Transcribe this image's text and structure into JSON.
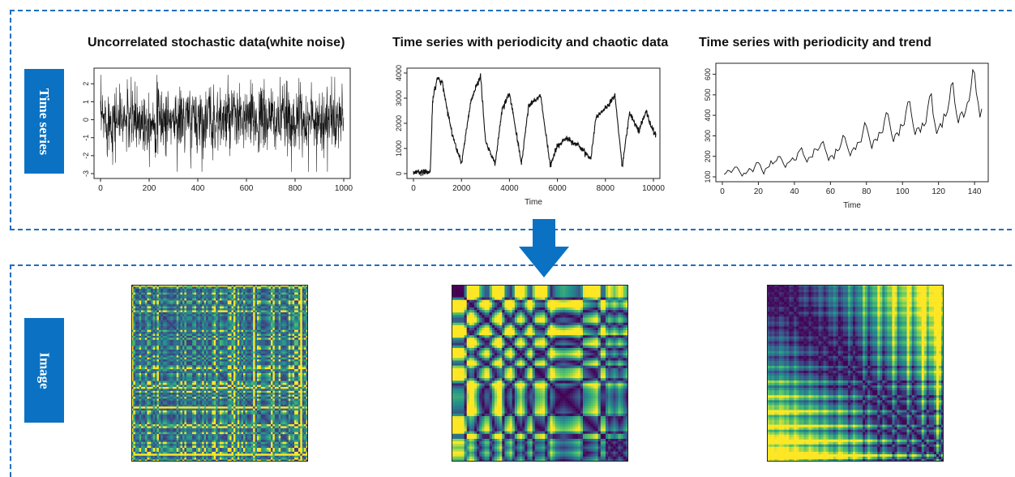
{
  "labels": {
    "time_series": "Time series",
    "image": "Image"
  },
  "colors": {
    "accent": "#0b72c3",
    "dashed_border": "#1f6fbf",
    "viridis_low": "#440154",
    "viridis_mid": "#21918c",
    "viridis_high": "#fde725"
  },
  "chart_data": [
    {
      "type": "line",
      "title": "Uncorrelated stochastic data(white noise)",
      "xlabel": "",
      "ylabel": "",
      "xlim": [
        0,
        1000
      ],
      "ylim": [
        -3,
        2.6
      ],
      "x_ticks": [
        "0",
        "200",
        "400",
        "600",
        "800",
        "1000"
      ],
      "y_ticks": [
        "-3",
        "-2",
        "-1",
        "0",
        "1",
        "2"
      ],
      "series": [
        {
          "description_values": "random normal noise, mean 0, sd ~1, 1000 points"
        }
      ]
    },
    {
      "type": "line",
      "title": "Time series with periodicity and chaotic data",
      "xlabel": "Time",
      "ylabel": "",
      "xlim": [
        0,
        10000
      ],
      "ylim": [
        0,
        4000
      ],
      "x_ticks": [
        "0",
        "2000",
        "4000",
        "6000",
        "8000",
        "10000"
      ],
      "y_ticks": [
        "0",
        "1000",
        "2000",
        "3000",
        "4000"
      ],
      "key_points": {
        "x": [
          0,
          700,
          800,
          1000,
          1200,
          1600,
          2000,
          2400,
          2800,
          3000,
          3400,
          3700,
          4000,
          4500,
          4800,
          5300,
          5700,
          6000,
          6400,
          6900,
          7400,
          7600,
          8000,
          8400,
          8700,
          9000,
          9400,
          9700,
          9900,
          10100
        ],
        "y": [
          50,
          80,
          2900,
          3800,
          3600,
          1600,
          400,
          2900,
          3900,
          1300,
          350,
          2600,
          3200,
          400,
          2700,
          3100,
          300,
          1100,
          1400,
          1100,
          600,
          2200,
          2600,
          3100,
          300,
          2400,
          1700,
          2500,
          1900,
          1500
        ]
      }
    },
    {
      "type": "line",
      "title": "Time series with periodicity and trend",
      "xlabel": "Time",
      "ylabel": "",
      "xlim": [
        0,
        144
      ],
      "ylim": [
        100,
        630
      ],
      "x_ticks": [
        "0",
        "20",
        "40",
        "60",
        "80",
        "100",
        "120",
        "140"
      ],
      "y_ticks": [
        "100",
        "200",
        "300",
        "400",
        "500",
        "600"
      ],
      "values": [
        112,
        118,
        132,
        129,
        121,
        135,
        148,
        148,
        136,
        119,
        104,
        118,
        115,
        126,
        141,
        135,
        125,
        149,
        170,
        170,
        158,
        133,
        114,
        140,
        145,
        150,
        178,
        163,
        172,
        178,
        199,
        199,
        184,
        162,
        146,
        166,
        171,
        180,
        193,
        181,
        183,
        218,
        230,
        242,
        209,
        191,
        172,
        194,
        196,
        196,
        236,
        235,
        229,
        243,
        264,
        272,
        237,
        211,
        180,
        201,
        204,
        188,
        235,
        227,
        234,
        264,
        302,
        293,
        259,
        229,
        203,
        229,
        242,
        233,
        267,
        269,
        270,
        315,
        364,
        347,
        312,
        274,
        237,
        278,
        284,
        277,
        317,
        313,
        318,
        374,
        413,
        405,
        355,
        306,
        271,
        306,
        315,
        301,
        356,
        348,
        355,
        422,
        465,
        467,
        404,
        347,
        305,
        336,
        340,
        318,
        362,
        348,
        363,
        435,
        491,
        505,
        404,
        359,
        310,
        337,
        360,
        342,
        406,
        396,
        420,
        472,
        548,
        559,
        463,
        407,
        362,
        405,
        417,
        391,
        419,
        461,
        472,
        535,
        622,
        606,
        508,
        461,
        390,
        432
      ]
    }
  ]
}
